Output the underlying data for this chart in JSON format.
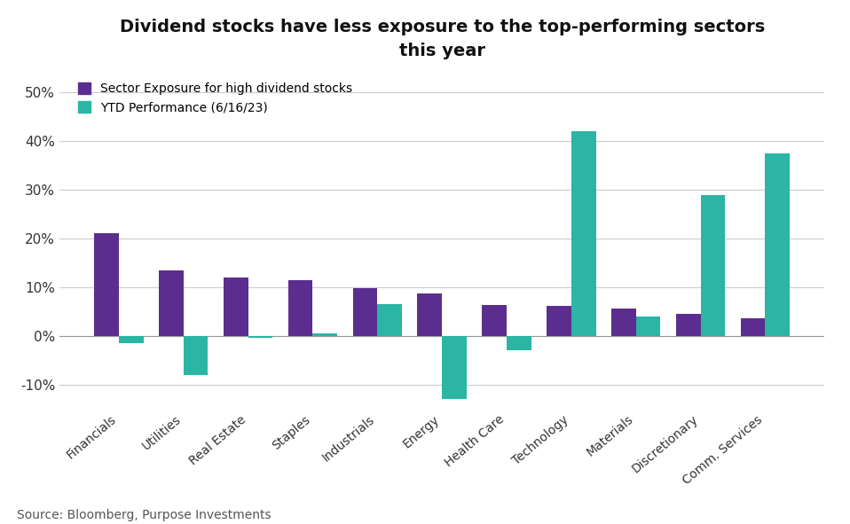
{
  "title": "Dividend stocks have less exposure to the top-performing sectors\nthis year",
  "categories": [
    "Financials",
    "Utilities",
    "Real Estate",
    "Staples",
    "Industrials",
    "Energy",
    "Health Care",
    "Technology",
    "Materials",
    "Discretionary",
    "Comm. Services"
  ],
  "sector_exposure": [
    21.0,
    13.5,
    12.0,
    11.5,
    9.8,
    8.7,
    6.3,
    6.2,
    5.5,
    4.5,
    3.6
  ],
  "ytd_perf_values": {
    "Financials": -1.5,
    "Utilities": -8.0,
    "Real Estate": -0.5,
    "Staples": 0.5,
    "Industrials": 6.5,
    "Energy": -13.0,
    "Health Care": -3.0,
    "Technology": 42.0,
    "Materials": 4.0,
    "Discretionary": 29.0,
    "Comm. Services": 37.5
  },
  "color_exposure": "#5b2d8e",
  "color_ytd": "#2ab5a5",
  "ylim_min": -15,
  "ylim_max": 55,
  "yticks": [
    -10,
    0,
    10,
    20,
    30,
    40,
    50
  ],
  "ytick_labels": [
    "-10%",
    "0%",
    "10%",
    "20%",
    "30%",
    "40%",
    "50%"
  ],
  "legend_exposure": "Sector Exposure for high dividend stocks",
  "legend_ytd": "YTD Performance (6/16/23)",
  "source": "Source: Bloomberg, Purpose Investments",
  "background_color": "#ffffff",
  "grid_color": "#cccccc"
}
